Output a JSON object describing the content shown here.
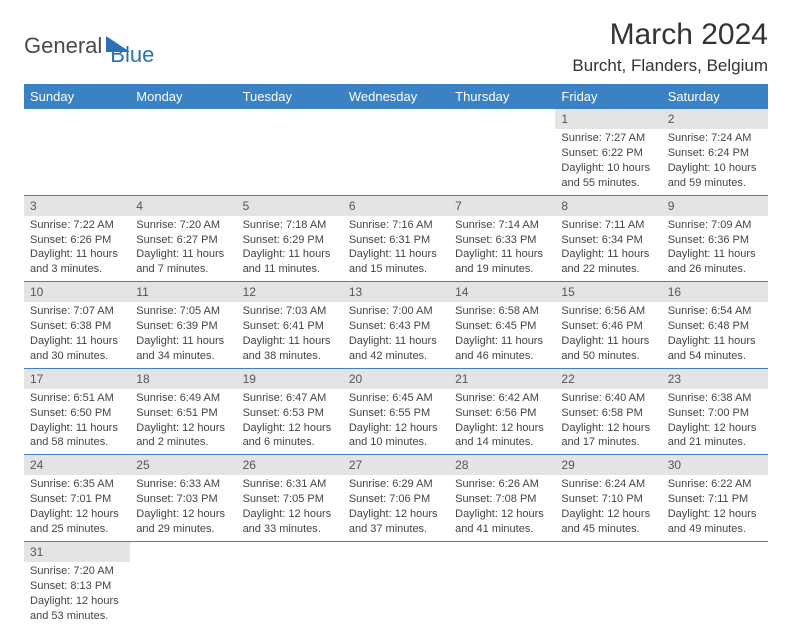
{
  "logo": {
    "part1": "General",
    "part2": "Blue"
  },
  "title": "March 2024",
  "location": "Burcht, Flanders, Belgium",
  "colors": {
    "header_bg": "#3b82c4",
    "header_fg": "#ffffff",
    "daynum_bg": "#e4e4e4",
    "border": "#3b82c4",
    "logo_gray": "#4a4a4a",
    "logo_blue": "#2a72b5"
  },
  "weekdays": [
    "Sunday",
    "Monday",
    "Tuesday",
    "Wednesday",
    "Thursday",
    "Friday",
    "Saturday"
  ],
  "weeks": [
    [
      {
        "n": "",
        "sr": "",
        "ss": "",
        "dl": ""
      },
      {
        "n": "",
        "sr": "",
        "ss": "",
        "dl": ""
      },
      {
        "n": "",
        "sr": "",
        "ss": "",
        "dl": ""
      },
      {
        "n": "",
        "sr": "",
        "ss": "",
        "dl": ""
      },
      {
        "n": "",
        "sr": "",
        "ss": "",
        "dl": ""
      },
      {
        "n": "1",
        "sr": "Sunrise: 7:27 AM",
        "ss": "Sunset: 6:22 PM",
        "dl": "Daylight: 10 hours and 55 minutes."
      },
      {
        "n": "2",
        "sr": "Sunrise: 7:24 AM",
        "ss": "Sunset: 6:24 PM",
        "dl": "Daylight: 10 hours and 59 minutes."
      }
    ],
    [
      {
        "n": "3",
        "sr": "Sunrise: 7:22 AM",
        "ss": "Sunset: 6:26 PM",
        "dl": "Daylight: 11 hours and 3 minutes."
      },
      {
        "n": "4",
        "sr": "Sunrise: 7:20 AM",
        "ss": "Sunset: 6:27 PM",
        "dl": "Daylight: 11 hours and 7 minutes."
      },
      {
        "n": "5",
        "sr": "Sunrise: 7:18 AM",
        "ss": "Sunset: 6:29 PM",
        "dl": "Daylight: 11 hours and 11 minutes."
      },
      {
        "n": "6",
        "sr": "Sunrise: 7:16 AM",
        "ss": "Sunset: 6:31 PM",
        "dl": "Daylight: 11 hours and 15 minutes."
      },
      {
        "n": "7",
        "sr": "Sunrise: 7:14 AM",
        "ss": "Sunset: 6:33 PM",
        "dl": "Daylight: 11 hours and 19 minutes."
      },
      {
        "n": "8",
        "sr": "Sunrise: 7:11 AM",
        "ss": "Sunset: 6:34 PM",
        "dl": "Daylight: 11 hours and 22 minutes."
      },
      {
        "n": "9",
        "sr": "Sunrise: 7:09 AM",
        "ss": "Sunset: 6:36 PM",
        "dl": "Daylight: 11 hours and 26 minutes."
      }
    ],
    [
      {
        "n": "10",
        "sr": "Sunrise: 7:07 AM",
        "ss": "Sunset: 6:38 PM",
        "dl": "Daylight: 11 hours and 30 minutes."
      },
      {
        "n": "11",
        "sr": "Sunrise: 7:05 AM",
        "ss": "Sunset: 6:39 PM",
        "dl": "Daylight: 11 hours and 34 minutes."
      },
      {
        "n": "12",
        "sr": "Sunrise: 7:03 AM",
        "ss": "Sunset: 6:41 PM",
        "dl": "Daylight: 11 hours and 38 minutes."
      },
      {
        "n": "13",
        "sr": "Sunrise: 7:00 AM",
        "ss": "Sunset: 6:43 PM",
        "dl": "Daylight: 11 hours and 42 minutes."
      },
      {
        "n": "14",
        "sr": "Sunrise: 6:58 AM",
        "ss": "Sunset: 6:45 PM",
        "dl": "Daylight: 11 hours and 46 minutes."
      },
      {
        "n": "15",
        "sr": "Sunrise: 6:56 AM",
        "ss": "Sunset: 6:46 PM",
        "dl": "Daylight: 11 hours and 50 minutes."
      },
      {
        "n": "16",
        "sr": "Sunrise: 6:54 AM",
        "ss": "Sunset: 6:48 PM",
        "dl": "Daylight: 11 hours and 54 minutes."
      }
    ],
    [
      {
        "n": "17",
        "sr": "Sunrise: 6:51 AM",
        "ss": "Sunset: 6:50 PM",
        "dl": "Daylight: 11 hours and 58 minutes."
      },
      {
        "n": "18",
        "sr": "Sunrise: 6:49 AM",
        "ss": "Sunset: 6:51 PM",
        "dl": "Daylight: 12 hours and 2 minutes."
      },
      {
        "n": "19",
        "sr": "Sunrise: 6:47 AM",
        "ss": "Sunset: 6:53 PM",
        "dl": "Daylight: 12 hours and 6 minutes."
      },
      {
        "n": "20",
        "sr": "Sunrise: 6:45 AM",
        "ss": "Sunset: 6:55 PM",
        "dl": "Daylight: 12 hours and 10 minutes."
      },
      {
        "n": "21",
        "sr": "Sunrise: 6:42 AM",
        "ss": "Sunset: 6:56 PM",
        "dl": "Daylight: 12 hours and 14 minutes."
      },
      {
        "n": "22",
        "sr": "Sunrise: 6:40 AM",
        "ss": "Sunset: 6:58 PM",
        "dl": "Daylight: 12 hours and 17 minutes."
      },
      {
        "n": "23",
        "sr": "Sunrise: 6:38 AM",
        "ss": "Sunset: 7:00 PM",
        "dl": "Daylight: 12 hours and 21 minutes."
      }
    ],
    [
      {
        "n": "24",
        "sr": "Sunrise: 6:35 AM",
        "ss": "Sunset: 7:01 PM",
        "dl": "Daylight: 12 hours and 25 minutes."
      },
      {
        "n": "25",
        "sr": "Sunrise: 6:33 AM",
        "ss": "Sunset: 7:03 PM",
        "dl": "Daylight: 12 hours and 29 minutes."
      },
      {
        "n": "26",
        "sr": "Sunrise: 6:31 AM",
        "ss": "Sunset: 7:05 PM",
        "dl": "Daylight: 12 hours and 33 minutes."
      },
      {
        "n": "27",
        "sr": "Sunrise: 6:29 AM",
        "ss": "Sunset: 7:06 PM",
        "dl": "Daylight: 12 hours and 37 minutes."
      },
      {
        "n": "28",
        "sr": "Sunrise: 6:26 AM",
        "ss": "Sunset: 7:08 PM",
        "dl": "Daylight: 12 hours and 41 minutes."
      },
      {
        "n": "29",
        "sr": "Sunrise: 6:24 AM",
        "ss": "Sunset: 7:10 PM",
        "dl": "Daylight: 12 hours and 45 minutes."
      },
      {
        "n": "30",
        "sr": "Sunrise: 6:22 AM",
        "ss": "Sunset: 7:11 PM",
        "dl": "Daylight: 12 hours and 49 minutes."
      }
    ],
    [
      {
        "n": "31",
        "sr": "Sunrise: 7:20 AM",
        "ss": "Sunset: 8:13 PM",
        "dl": "Daylight: 12 hours and 53 minutes."
      },
      {
        "n": "",
        "sr": "",
        "ss": "",
        "dl": ""
      },
      {
        "n": "",
        "sr": "",
        "ss": "",
        "dl": ""
      },
      {
        "n": "",
        "sr": "",
        "ss": "",
        "dl": ""
      },
      {
        "n": "",
        "sr": "",
        "ss": "",
        "dl": ""
      },
      {
        "n": "",
        "sr": "",
        "ss": "",
        "dl": ""
      },
      {
        "n": "",
        "sr": "",
        "ss": "",
        "dl": ""
      }
    ]
  ]
}
